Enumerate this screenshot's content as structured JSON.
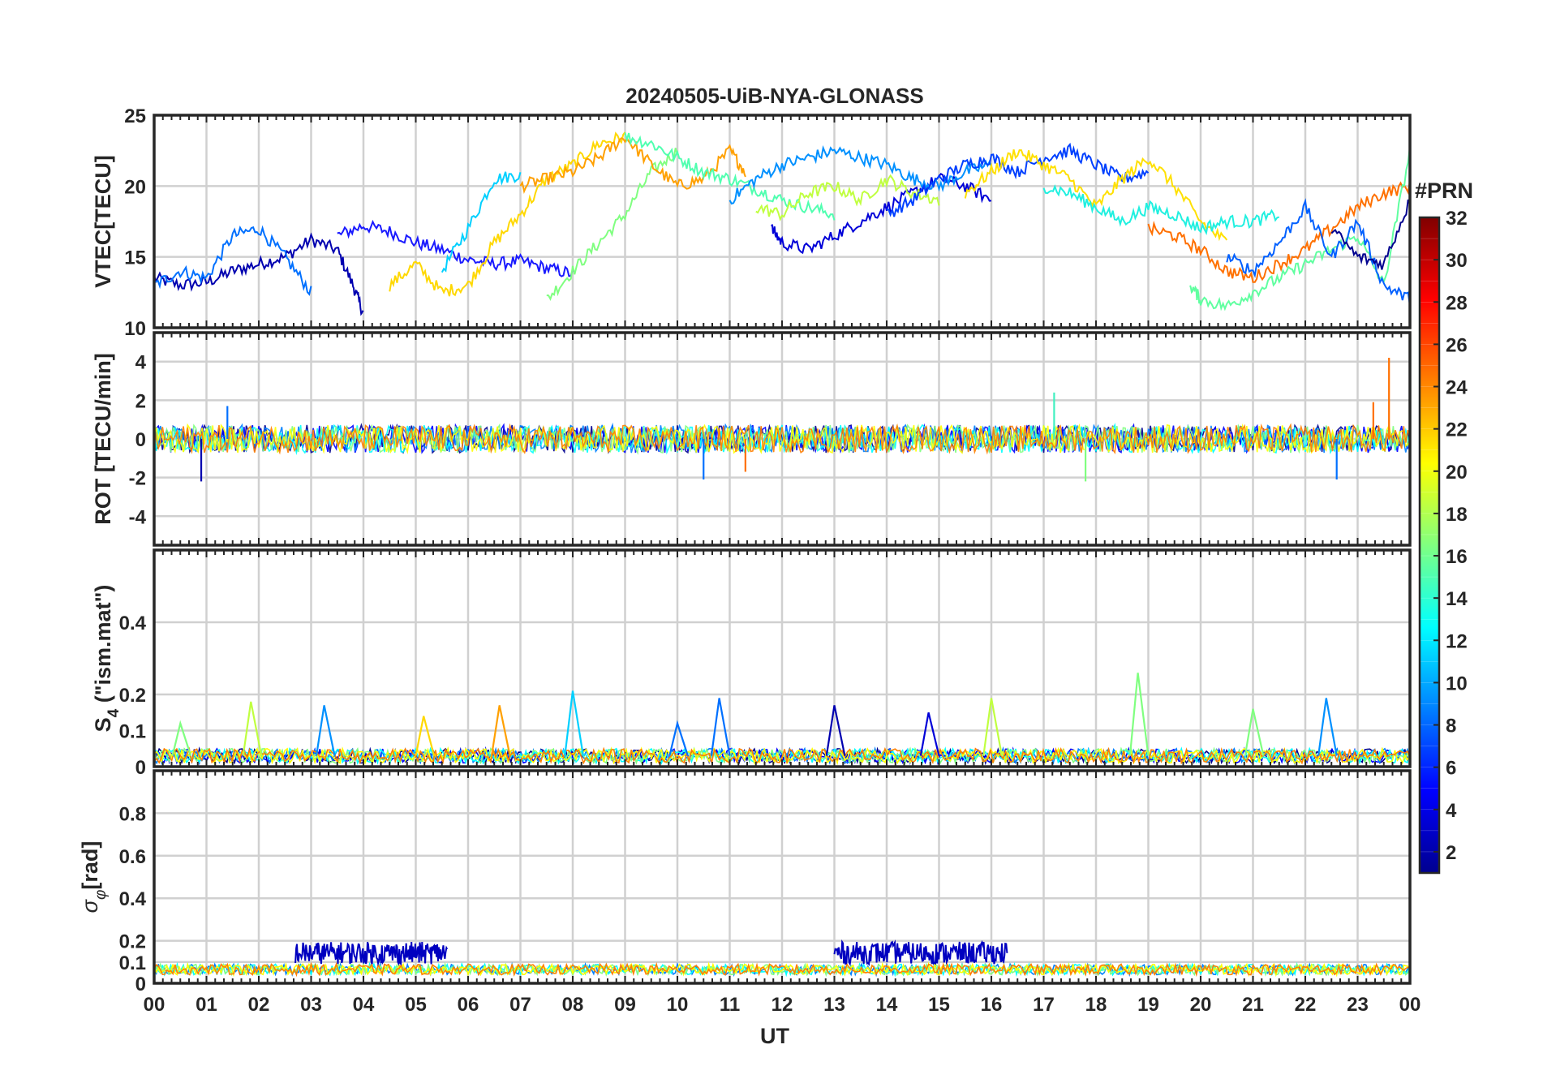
{
  "figure": {
    "title": "20240505-UiB-NYA-GLONASS",
    "xlabel": "UT",
    "x_ticks": [
      "00",
      "01",
      "02",
      "03",
      "04",
      "05",
      "06",
      "07",
      "08",
      "09",
      "10",
      "11",
      "12",
      "13",
      "14",
      "15",
      "16",
      "17",
      "18",
      "19",
      "20",
      "21",
      "22",
      "23",
      "00"
    ]
  },
  "colorbar": {
    "label": "#PRN",
    "range": [
      1,
      32
    ],
    "ticks": [
      "2",
      "4",
      "6",
      "8",
      "10",
      "12",
      "14",
      "16",
      "18",
      "20",
      "22",
      "24",
      "26",
      "28",
      "30",
      "32"
    ],
    "colormap": "jet",
    "colors": [
      "#00008f",
      "#0000ff",
      "#0080ff",
      "#00ffff",
      "#80ff80",
      "#ffff00",
      "#ff8000",
      "#ff0000",
      "#800000"
    ]
  },
  "chart_data": [
    {
      "type": "line",
      "panel": "vtec",
      "ylabel": "VTEC[TECU]",
      "ylim": [
        10,
        25
      ],
      "y_ticks": [
        "10",
        "15",
        "20",
        "25"
      ],
      "xlim_hours": [
        0,
        24
      ],
      "grid": true,
      "series": [
        {
          "prn": 2,
          "color": "#0000b0",
          "x": [
            0.0,
            0.5,
            1.0,
            1.5,
            2.0,
            2.5,
            3.0,
            3.5,
            3.8,
            4.0
          ],
          "y": [
            13.5,
            13.0,
            13.2,
            14.0,
            14.5,
            15.0,
            16.2,
            15.5,
            13.0,
            11.0
          ]
        },
        {
          "prn": 4,
          "color": "#1a1aff",
          "x": [
            3.5,
            4.0,
            4.5,
            5.0,
            5.5,
            6.0,
            6.5,
            7.0,
            7.5,
            8.0
          ],
          "y": [
            16.5,
            17.2,
            16.8,
            16.0,
            15.5,
            14.8,
            14.5,
            14.7,
            14.2,
            13.8
          ]
        },
        {
          "prn": 8,
          "color": "#0070ff",
          "x": [
            0.0,
            0.5,
            1.0,
            1.5,
            2.0,
            2.5,
            3.0
          ],
          "y": [
            13.0,
            14.0,
            13.5,
            16.5,
            17.0,
            15.0,
            12.5
          ]
        },
        {
          "prn": 12,
          "color": "#00d0ff",
          "x": [
            5.5,
            6.0,
            6.5,
            7.0
          ],
          "y": [
            14.0,
            17.0,
            20.5,
            20.8
          ]
        },
        {
          "prn": 16,
          "color": "#80ff80",
          "x": [
            7.5,
            8.0,
            8.5,
            9.0,
            9.5,
            10.0
          ],
          "y": [
            12.0,
            14.0,
            16.0,
            18.0,
            21.0,
            22.5
          ]
        },
        {
          "prn": 20,
          "color": "#ffd800",
          "x": [
            4.5,
            5.0,
            5.5,
            6.0,
            6.5,
            7.0,
            7.5,
            8.0,
            8.5,
            9.0
          ],
          "y": [
            13.0,
            14.5,
            12.5,
            13.0,
            16.0,
            18.0,
            20.5,
            21.5,
            23.0,
            23.5
          ]
        },
        {
          "prn": 22,
          "color": "#ffa000",
          "x": [
            7.0,
            7.5,
            8.0,
            8.5,
            9.0,
            9.5,
            10.0,
            10.5,
            11.0,
            11.3
          ],
          "y": [
            20.0,
            20.5,
            21.0,
            22.0,
            23.5,
            21.5,
            20.0,
            20.5,
            22.5,
            21.0
          ]
        },
        {
          "prn": 14,
          "color": "#50ffb0",
          "x": [
            9.0,
            9.5,
            10.0,
            10.5,
            11.0,
            11.5,
            12.0,
            12.5,
            13.0
          ],
          "y": [
            23.5,
            23.0,
            22.0,
            21.0,
            20.5,
            19.8,
            19.0,
            18.5,
            18.0
          ]
        },
        {
          "prn": 3,
          "color": "#0000d8",
          "x": [
            11.8,
            12.0,
            12.5,
            13.0,
            13.5,
            14.0,
            14.5,
            15.0,
            15.5,
            16.0
          ],
          "y": [
            17.0,
            16.0,
            15.5,
            16.5,
            17.5,
            18.5,
            19.5,
            20.5,
            20.0,
            19.0
          ]
        },
        {
          "prn": 9,
          "color": "#0090ff",
          "x": [
            11.0,
            11.5,
            12.0,
            12.5,
            13.0,
            13.5,
            14.0,
            14.5,
            15.0,
            15.5,
            16.0
          ],
          "y": [
            19.0,
            20.5,
            21.5,
            22.0,
            22.5,
            22.0,
            21.5,
            20.5,
            20.0,
            21.0,
            21.5
          ]
        },
        {
          "prn": 18,
          "color": "#c0ff40",
          "x": [
            11.5,
            12.0,
            12.5,
            13.0,
            13.5,
            14.0,
            14.5,
            15.0
          ],
          "y": [
            18.5,
            18.0,
            19.5,
            20.0,
            19.0,
            20.5,
            19.5,
            19.0
          ]
        },
        {
          "prn": 6,
          "color": "#0040ff",
          "x": [
            14.0,
            14.5,
            15.0,
            15.5,
            16.0,
            16.5,
            17.0,
            17.5,
            18.0,
            18.5,
            19.0
          ],
          "y": [
            18.0,
            19.0,
            20.5,
            21.5,
            22.0,
            21.0,
            22.0,
            22.5,
            21.5,
            20.5,
            21.0
          ]
        },
        {
          "prn": 21,
          "color": "#ffe000",
          "x": [
            15.5,
            16.0,
            16.5,
            17.0,
            17.5,
            18.0,
            18.5,
            19.0,
            19.5,
            20.0,
            20.5
          ],
          "y": [
            19.5,
            21.0,
            22.5,
            21.5,
            20.5,
            18.5,
            20.5,
            22.0,
            20.0,
            17.5,
            16.0
          ]
        },
        {
          "prn": 13,
          "color": "#20f0e0",
          "x": [
            17.0,
            17.5,
            18.0,
            18.5,
            19.0,
            19.5,
            20.0,
            20.5,
            21.0,
            21.5
          ],
          "y": [
            20.0,
            19.5,
            18.5,
            17.5,
            18.5,
            18.0,
            17.0,
            17.5,
            17.5,
            18.0
          ]
        },
        {
          "prn": 24,
          "color": "#ff7000",
          "x": [
            19.0,
            19.5,
            20.0,
            20.5,
            21.0,
            21.5,
            22.0,
            22.5,
            23.0,
            23.5,
            24.0
          ],
          "y": [
            17.0,
            16.5,
            15.5,
            14.0,
            13.5,
            14.5,
            15.5,
            17.0,
            18.5,
            19.5,
            20.0
          ]
        },
        {
          "prn": 15,
          "color": "#60ffa0",
          "x": [
            19.8,
            20.0,
            20.5,
            21.0,
            21.5,
            22.0,
            22.5,
            23.0,
            23.5,
            24.0
          ],
          "y": [
            13.0,
            12.0,
            11.5,
            12.5,
            13.5,
            14.5,
            15.5,
            16.5,
            13.0,
            22.5
          ]
        },
        {
          "prn": 7,
          "color": "#0060ff",
          "x": [
            20.5,
            21.0,
            21.5,
            22.0,
            22.5,
            23.0,
            23.5,
            24.0
          ],
          "y": [
            15.0,
            14.0,
            16.0,
            18.5,
            15.0,
            17.5,
            13.0,
            12.0
          ]
        },
        {
          "prn": 1,
          "color": "#00008f",
          "x": [
            22.5,
            23.0,
            23.5,
            24.0
          ],
          "y": [
            17.0,
            15.0,
            14.5,
            19.0
          ]
        }
      ]
    },
    {
      "type": "line",
      "panel": "rot",
      "ylabel": "ROT [TECU/min]",
      "ylim": [
        -5.5,
        5.5
      ],
      "y_ticks": [
        "-4",
        "-2",
        "0",
        "2",
        "4"
      ],
      "xlim_hours": [
        0,
        24
      ],
      "grid": true,
      "noise_band": [
        -0.8,
        0.8
      ],
      "spikes": [
        {
          "x": 0.9,
          "y": -2.2,
          "color": "#0000b0"
        },
        {
          "x": 1.4,
          "y": 1.7,
          "color": "#0070ff"
        },
        {
          "x": 10.5,
          "y": -2.1,
          "color": "#0070ff"
        },
        {
          "x": 11.3,
          "y": -1.7,
          "color": "#ff7000"
        },
        {
          "x": 17.2,
          "y": 2.4,
          "color": "#40f0c0"
        },
        {
          "x": 17.8,
          "y": -2.2,
          "color": "#80ff80"
        },
        {
          "x": 22.6,
          "y": -2.1,
          "color": "#0070ff"
        },
        {
          "x": 23.6,
          "y": 4.2,
          "color": "#ff7000"
        },
        {
          "x": 23.3,
          "y": 1.9,
          "color": "#ff7000"
        }
      ]
    },
    {
      "type": "line",
      "panel": "s4",
      "ylabel": "S4 (\"ism.mat\")",
      "ylabel_main": "S",
      "ylabel_sub": "4",
      "ylabel_rest": " (\"ism.mat\")",
      "ylim": [
        0,
        0.6
      ],
      "y_ticks": [
        "0",
        "0.1",
        "0.2",
        "0.4"
      ],
      "xlim_hours": [
        0,
        24
      ],
      "grid": true,
      "baseline": [
        0.01,
        0.05
      ],
      "spikes": [
        {
          "x": 0.5,
          "y": 0.12,
          "color": "#80ff80"
        },
        {
          "x": 1.85,
          "y": 0.18,
          "color": "#c0ff40"
        },
        {
          "x": 3.25,
          "y": 0.17,
          "color": "#0090ff"
        },
        {
          "x": 5.15,
          "y": 0.14,
          "color": "#ffd800"
        },
        {
          "x": 6.6,
          "y": 0.17,
          "color": "#ffa000"
        },
        {
          "x": 8.0,
          "y": 0.21,
          "color": "#00d0ff"
        },
        {
          "x": 10.0,
          "y": 0.12,
          "color": "#0070ff"
        },
        {
          "x": 10.8,
          "y": 0.19,
          "color": "#0070ff"
        },
        {
          "x": 13.0,
          "y": 0.17,
          "color": "#0000b0"
        },
        {
          "x": 14.8,
          "y": 0.15,
          "color": "#0000d8"
        },
        {
          "x": 16.0,
          "y": 0.19,
          "color": "#c0ff40"
        },
        {
          "x": 18.8,
          "y": 0.26,
          "color": "#80ff80"
        },
        {
          "x": 21.0,
          "y": 0.16,
          "color": "#80ff80"
        },
        {
          "x": 22.4,
          "y": 0.19,
          "color": "#0090ff"
        }
      ]
    },
    {
      "type": "line",
      "panel": "sigma_phi",
      "ylabel": "σφ[rad]",
      "ylabel_main": "σ",
      "ylabel_sub": "φ",
      "ylabel_rest": "[rad]",
      "ylim": [
        0,
        1.0
      ],
      "y_ticks": [
        "0",
        "0.1",
        "0.2",
        "0.4",
        "0.6",
        "0.8"
      ],
      "xlim_hours": [
        0,
        24
      ],
      "grid": true,
      "dark_bursts": [
        {
          "start": 2.7,
          "end": 5.6,
          "level": 0.15
        },
        {
          "start": 13.0,
          "end": 16.3,
          "level": 0.15
        }
      ]
    }
  ]
}
